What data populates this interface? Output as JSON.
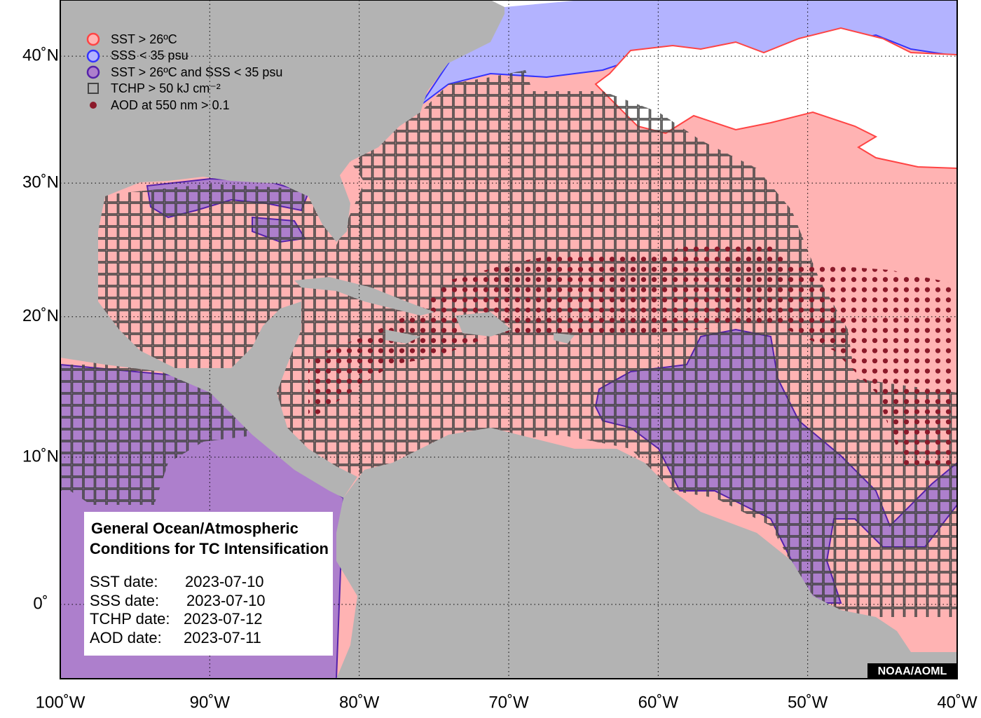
{
  "map": {
    "lon_ticks": [
      {
        "value": -100,
        "label": "100˚W"
      },
      {
        "value": -90,
        "label": "90˚W"
      },
      {
        "value": -80,
        "label": "80˚W"
      },
      {
        "value": -70,
        "label": "70˚W"
      },
      {
        "value": -60,
        "label": "60˚W"
      },
      {
        "value": -50,
        "label": "50˚W"
      },
      {
        "value": -40,
        "label": "40˚W"
      }
    ],
    "lat_ticks": [
      {
        "value": 40,
        "label": "40˚N"
      },
      {
        "value": 30,
        "label": "30˚N"
      },
      {
        "value": 20,
        "label": "20˚N"
      },
      {
        "value": 10,
        "label": "10˚N"
      },
      {
        "value": 0,
        "label": "0˚"
      }
    ],
    "legend": [
      "SST > 26ºC",
      "SSS < 35 psu",
      "SST > 26ºC and SSS < 35 psu",
      "TCHP > 50 kJ cm⁻²",
      "AOD at 550 nm > 0.1"
    ],
    "info": {
      "title": [
        "General Ocean/Atmospheric",
        "Conditions for TC Intensification"
      ],
      "dates": [
        [
          "SST date:",
          "2023-07-10"
        ],
        [
          "SSS date:",
          "2023-07-10"
        ],
        [
          "TCHP date:",
          "2023-07-12"
        ],
        [
          "AOD date:",
          "2023-07-11"
        ]
      ]
    },
    "credit": "NOAA/AOML"
  }
}
